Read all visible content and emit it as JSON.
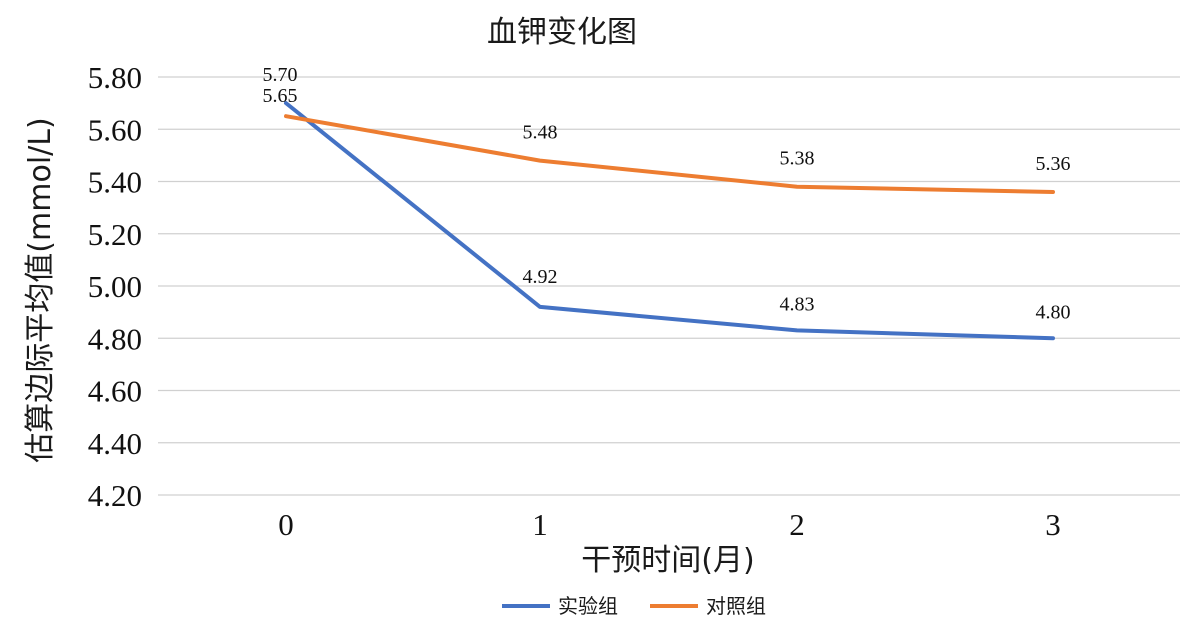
{
  "chart_data": {
    "type": "line",
    "title": "血钾变化图",
    "xlabel": "干预时间(月)",
    "ylabel": "估算边际平均值(mmol/L)",
    "categories": [
      "0",
      "1",
      "2",
      "3"
    ],
    "ylim": [
      4.2,
      5.8
    ],
    "yticks": [
      "4.20",
      "4.40",
      "4.60",
      "4.80",
      "5.00",
      "5.20",
      "5.40",
      "5.60",
      "5.80"
    ],
    "grid": true,
    "legend_position": "bottom",
    "series": [
      {
        "name": "实验组",
        "color": "#4472c4",
        "values": [
          5.7,
          4.92,
          4.83,
          4.8
        ],
        "labels": [
          "5.70",
          "4.92",
          "4.83",
          "4.80"
        ]
      },
      {
        "name": "对照组",
        "color": "#ed7d31",
        "values": [
          5.65,
          5.48,
          5.38,
          5.36
        ],
        "labels": [
          "5.65",
          "5.48",
          "5.38",
          "5.36"
        ]
      }
    ]
  }
}
